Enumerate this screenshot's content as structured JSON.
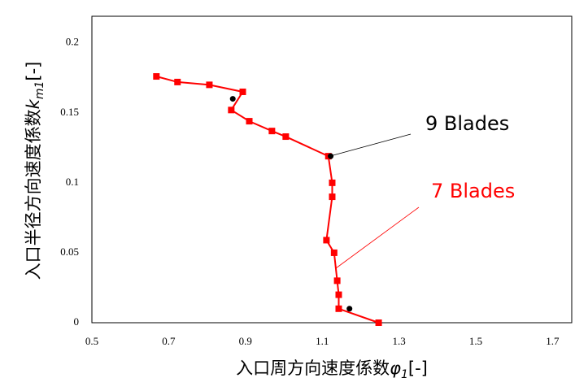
{
  "chart_data": {
    "type": "line",
    "xlabel": [
      "入口周方向速度係数",
      "φ",
      "1",
      "[-]"
    ],
    "ylabel": [
      "入口半径方向速度係数",
      "k",
      "m1",
      "[-]"
    ],
    "xlim": [
      0.5,
      1.75
    ],
    "xticks": [
      0.5,
      0.7,
      0.9,
      1.1,
      1.3,
      1.5,
      1.7
    ],
    "ylim": [
      0,
      0.219
    ],
    "yticks": [
      0,
      0.05,
      0.1,
      0.15,
      0.2
    ],
    "grid": false,
    "series": [
      {
        "color": "#ff0000",
        "marker": "square",
        "line": true,
        "x": [
          0.668,
          0.723,
          0.806,
          0.893,
          0.863,
          0.91,
          0.969,
          1.005,
          1.116,
          1.126,
          1.126,
          1.111,
          1.131,
          1.139,
          1.143,
          1.143,
          1.247
        ],
        "values": [
          0.176,
          0.172,
          0.17,
          0.165,
          0.152,
          0.144,
          0.137,
          0.133,
          0.119,
          0.1,
          0.09,
          0.059,
          0.05,
          0.03,
          0.02,
          0.01,
          0.0
        ]
      },
      {
        "color": "#000000",
        "marker": "circle",
        "line": false,
        "x": [
          0.867,
          1.122,
          1.171
        ],
        "values": [
          0.16,
          0.119,
          0.01
        ]
      }
    ],
    "annotations": [
      {
        "text": "9 Blades",
        "color": "#000000"
      },
      {
        "text": "7 Blades",
        "color": "#ff0000"
      }
    ]
  }
}
